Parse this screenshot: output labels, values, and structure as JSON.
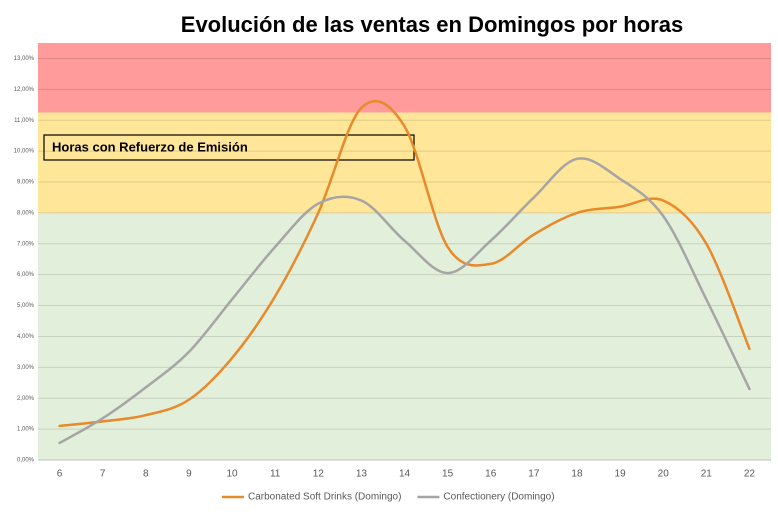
{
  "chart_data": {
    "type": "line",
    "title": "Evolución de las ventas  en Domingos por horas",
    "annotation": "Horas con  Refuerzo de Emisión",
    "categories": [
      "6",
      "7",
      "8",
      "9",
      "10",
      "11",
      "12",
      "13",
      "14",
      "15",
      "16",
      "17",
      "18",
      "19",
      "20",
      "21",
      "22"
    ],
    "series": [
      {
        "name": "Carbonated Soft Drinks (Domingo)",
        "color": "#e8892b",
        "values": [
          1.1,
          1.25,
          1.45,
          1.95,
          3.3,
          5.3,
          8.0,
          11.4,
          10.8,
          6.9,
          6.35,
          7.3,
          8.0,
          8.2,
          8.4,
          7.0,
          3.6
        ]
      },
      {
        "name": "Confectionery (Domingo)",
        "color": "#a5a5a5",
        "values": [
          0.55,
          1.35,
          2.35,
          3.5,
          5.2,
          6.9,
          8.3,
          8.4,
          7.1,
          6.05,
          7.1,
          8.5,
          9.75,
          9.1,
          7.9,
          5.2,
          2.3
        ]
      }
    ],
    "bands": [
      {
        "from": 0,
        "to": 8,
        "color": "#e2efda"
      },
      {
        "from": 8,
        "to": 11.25,
        "color": "#ffe699"
      },
      {
        "from": 11.25,
        "to": 13.5,
        "color": "#ff9b9b"
      }
    ],
    "ylim": [
      0,
      13.5
    ],
    "yticks": [
      {
        "value": 0,
        "label": "0,00%"
      },
      {
        "value": 1,
        "label": "1,00%"
      },
      {
        "value": 2,
        "label": "2,00%"
      },
      {
        "value": 3,
        "label": "3,00%"
      },
      {
        "value": 4,
        "label": "4,00%"
      },
      {
        "value": 5,
        "label": "5,00%"
      },
      {
        "value": 6,
        "label": "6,00%"
      },
      {
        "value": 7,
        "label": "7,00%"
      },
      {
        "value": 8,
        "label": "8,00%"
      },
      {
        "value": 9,
        "label": "9,00%"
      },
      {
        "value": 10,
        "label": "10,00%"
      },
      {
        "value": 11,
        "label": "11,00%"
      },
      {
        "value": 12,
        "label": "12,00%"
      },
      {
        "value": 13,
        "label": "13,00%"
      }
    ],
    "grid": true,
    "legend": "bottom"
  }
}
